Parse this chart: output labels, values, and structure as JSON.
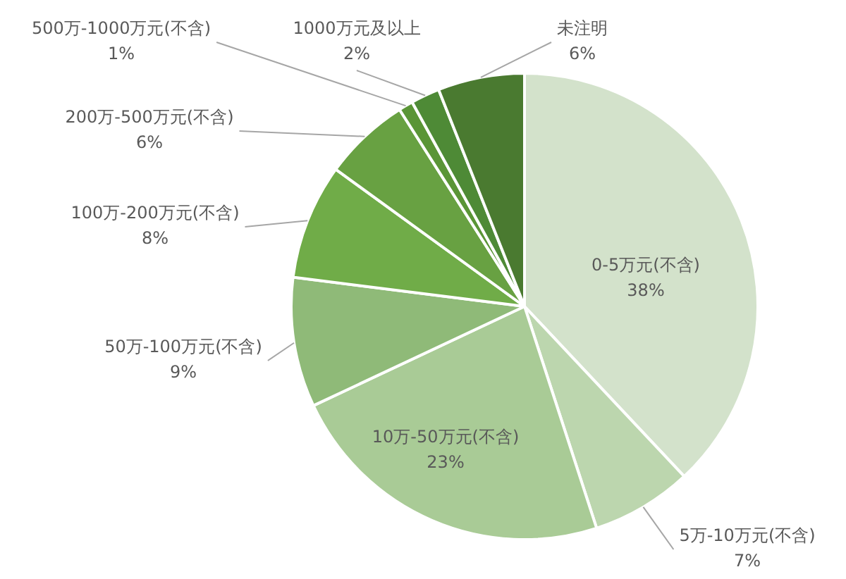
{
  "chart_data": {
    "type": "pie",
    "categories": [
      "0-5万元(不含)",
      "5万-10万元(不含)",
      "10万-50万元(不含)",
      "50万-100万元(不含)",
      "100万-200万元(不含)",
      "200万-500万元(不含)",
      "500万-1000万元(不含)",
      "1000万元及以上",
      "未注明"
    ],
    "values": [
      38,
      7,
      23,
      9,
      8,
      6,
      1,
      2,
      6
    ],
    "value_labels": [
      "38%",
      "7%",
      "23%",
      "9%",
      "8%",
      "6%",
      "1%",
      "2%",
      "6%"
    ],
    "colors": [
      "#d3e2cb",
      "#bcd6ae",
      "#a9cb96",
      "#8fba78",
      "#70ac48",
      "#68a142",
      "#5a9536",
      "#4e8a36",
      "#4a7a30"
    ],
    "legend": false
  }
}
